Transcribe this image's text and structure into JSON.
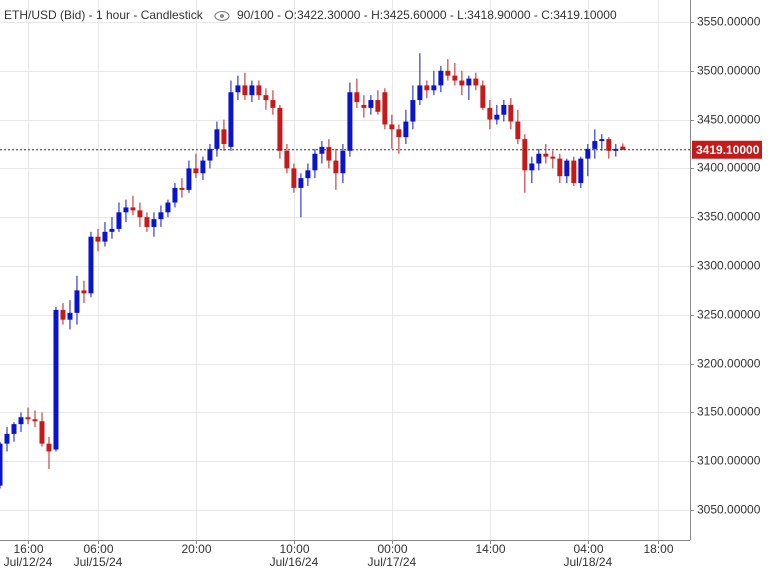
{
  "chart_data": {
    "type": "candlestick",
    "title": "ETH/USD (Bid) - 1 hour - Candlestick",
    "info": "90/100 - O:3422.30000 - H:3425.60000 - L:3418.90000 - C:3419.10000",
    "up_color": "#0a14c8",
    "down_color": "#c41a1a",
    "grid": true,
    "series": {
      "open": [
        3075,
        3118,
        3128,
        3138,
        3145,
        3143,
        3141,
        3118,
        3112,
        3255,
        3245,
        3252,
        3275,
        3272,
        3330,
        3325,
        3335,
        3338,
        3355,
        3360,
        3357,
        3350,
        3340,
        3348,
        3355,
        3365,
        3380,
        3378,
        3400,
        3395,
        3408,
        3420,
        3440,
        3422,
        3478,
        3485,
        3475,
        3485,
        3475,
        3470,
        3462,
        3418,
        3400,
        3380,
        3390,
        3398,
        3415,
        3422,
        3408,
        3395,
        3418,
        3478,
        3465,
        3462,
        3470,
        3478,
        3445,
        3440,
        3432,
        3448,
        3470,
        3485,
        3480,
        3485,
        3500,
        3495,
        3490,
        3485,
        3492,
        3485,
        3462,
        3450,
        3455,
        3465,
        3448,
        3430,
        3398,
        3405,
        3415,
        3412,
        3410,
        3392,
        3408,
        3385,
        3410,
        3420,
        3428,
        3430,
        3418,
        3422.3
      ],
      "high": [
        3120,
        3135,
        3140,
        3150,
        3155,
        3152,
        3150,
        3125,
        3258,
        3262,
        3265,
        3290,
        3285,
        3335,
        3338,
        3345,
        3350,
        3365,
        3368,
        3372,
        3365,
        3355,
        3355,
        3362,
        3368,
        3385,
        3390,
        3408,
        3415,
        3412,
        3425,
        3448,
        3450,
        3490,
        3495,
        3498,
        3490,
        3490,
        3482,
        3480,
        3465,
        3425,
        3405,
        3395,
        3405,
        3420,
        3428,
        3430,
        3420,
        3425,
        3488,
        3492,
        3475,
        3475,
        3480,
        3482,
        3455,
        3445,
        3460,
        3485,
        3518,
        3490,
        3500,
        3505,
        3512,
        3508,
        3500,
        3495,
        3498,
        3490,
        3470,
        3465,
        3470,
        3472,
        3460,
        3435,
        3412,
        3420,
        3425,
        3418,
        3415,
        3410,
        3412,
        3412,
        3425,
        3440,
        3435,
        3432,
        3425,
        3425.6
      ],
      "low": [
        3072,
        3110,
        3120,
        3130,
        3138,
        3135,
        3115,
        3092,
        3110,
        3240,
        3235,
        3240,
        3262,
        3268,
        3315,
        3320,
        3328,
        3335,
        3345,
        3352,
        3340,
        3335,
        3330,
        3340,
        3350,
        3360,
        3370,
        3375,
        3390,
        3388,
        3400,
        3412,
        3418,
        3418,
        3470,
        3470,
        3468,
        3470,
        3460,
        3455,
        3410,
        3395,
        3375,
        3350,
        3382,
        3390,
        3405,
        3400,
        3378,
        3385,
        3412,
        3462,
        3452,
        3455,
        3455,
        3440,
        3420,
        3415,
        3425,
        3440,
        3465,
        3472,
        3475,
        3478,
        3490,
        3485,
        3475,
        3470,
        3480,
        3460,
        3440,
        3445,
        3448,
        3440,
        3425,
        3375,
        3385,
        3398,
        3405,
        3400,
        3385,
        3385,
        3382,
        3380,
        3392,
        3410,
        3418,
        3410,
        3412,
        3418.9
      ],
      "close": [
        3118,
        3128,
        3138,
        3145,
        3143,
        3141,
        3118,
        3110,
        3255,
        3245,
        3252,
        3275,
        3272,
        3330,
        3325,
        3335,
        3338,
        3355,
        3360,
        3357,
        3350,
        3340,
        3348,
        3355,
        3365,
        3380,
        3378,
        3400,
        3395,
        3408,
        3420,
        3440,
        3425,
        3478,
        3485,
        3475,
        3485,
        3475,
        3470,
        3462,
        3418,
        3400,
        3380,
        3390,
        3398,
        3415,
        3422,
        3408,
        3395,
        3418,
        3478,
        3468,
        3462,
        3470,
        3458,
        3445,
        3440,
        3432,
        3448,
        3470,
        3485,
        3480,
        3485,
        3500,
        3495,
        3490,
        3485,
        3492,
        3485,
        3462,
        3450,
        3455,
        3465,
        3448,
        3430,
        3398,
        3405,
        3415,
        3412,
        3410,
        3392,
        3408,
        3385,
        3410,
        3420,
        3428,
        3430,
        3418,
        3420,
        3419.1
      ]
    },
    "last_price": {
      "value": 3419.1,
      "label": "3419.10000"
    },
    "ylim": [
      3019.3,
      3572.5
    ],
    "yticks": [
      {
        "value": 3050,
        "label": "3050.00000"
      },
      {
        "value": 3100,
        "label": "3100.00000"
      },
      {
        "value": 3150,
        "label": "3150.00000"
      },
      {
        "value": 3200,
        "label": "3200.00000"
      },
      {
        "value": 3250,
        "label": "3250.00000"
      },
      {
        "value": 3300,
        "label": "3300.00000"
      },
      {
        "value": 3350,
        "label": "3350.00000"
      },
      {
        "value": 3400,
        "label": "3400.00000"
      },
      {
        "value": 3450,
        "label": "3450.00000"
      },
      {
        "value": 3500,
        "label": "3500.00000"
      },
      {
        "value": 3550,
        "label": "3550.00000"
      }
    ],
    "xlim": [
      0,
      98.6
    ],
    "xticks": [
      {
        "value": 4,
        "label": "16:00"
      },
      {
        "value": 14,
        "label": "06:00"
      },
      {
        "value": 28,
        "label": "20:00"
      },
      {
        "value": 42,
        "label": "10:00"
      },
      {
        "value": 56,
        "label": "00:00"
      },
      {
        "value": 70,
        "label": "14:00"
      },
      {
        "value": 84,
        "label": "04:00"
      },
      {
        "value": 94,
        "label": "18:00"
      }
    ],
    "xtick_dates": [
      {
        "value": 4,
        "label": "Jul/12/24"
      },
      {
        "value": 14,
        "label": "Jul/15/24"
      },
      {
        "value": 42,
        "label": "Jul/16/24"
      },
      {
        "value": 56,
        "label": "Jul/17/24"
      },
      {
        "value": 84,
        "label": "Jul/18/24"
      }
    ]
  }
}
